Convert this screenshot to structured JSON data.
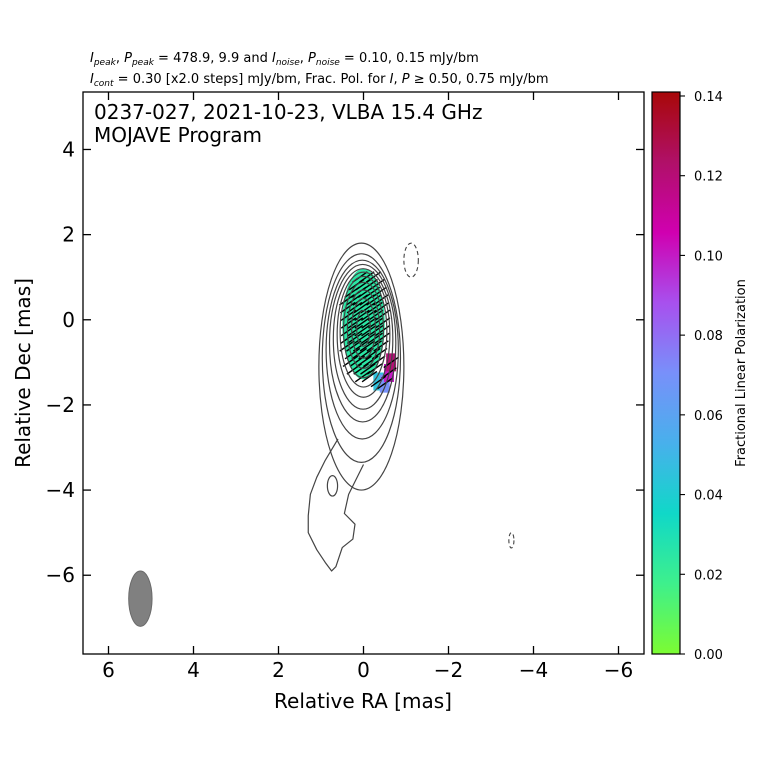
{
  "chart_data": {
    "type": "contour",
    "header": {
      "line1": {
        "sym1": "I",
        "sub1": "peak",
        "sym2": "P",
        "sub2": "peak",
        "mid": " = 478.9, 9.9 and ",
        "sym3": "I",
        "sub3": "noise",
        "sym4": "P",
        "sub4": "noise",
        "tail": " = 0.10, 0.15 mJy/bm"
      },
      "line2": {
        "sym1": "I",
        "sub1": "cont",
        "mid": " = 0.30 [x2.0 steps] mJy/bm, Frac. Pol. for ",
        "sym2": "I",
        "sym3": "P",
        "tail": " 0.50, 0.75 mJy/bm"
      }
    },
    "title_line1": "0237-027, 2021-10-23, VLBA 15.4 GHz",
    "title_line2": "MOJAVE Program",
    "xlabel": "Relative RA [mas]",
    "ylabel": "Relative Dec [mas]",
    "xlim": [
      6.6,
      -6.6
    ],
    "ylim": [
      -7.85,
      5.35
    ],
    "xticks": [
      6,
      4,
      2,
      0,
      -2,
      -4,
      -6
    ],
    "yticks": [
      4,
      2,
      0,
      -2,
      -4,
      -6
    ],
    "colorbar": {
      "label": "Fractional Linear Polarization",
      "range": [
        0,
        0.141
      ],
      "ticks": [
        "0.00",
        "0.02",
        "0.04",
        "0.06",
        "0.08",
        "0.10",
        "0.12",
        "0.14"
      ],
      "colors": [
        "#7cfc32",
        "#3ef08c",
        "#10d8c8",
        "#48b0ec",
        "#7890fa",
        "#a850ee",
        "#d000b0",
        "#b01068",
        "#a80808"
      ]
    },
    "core": {
      "x": 0.0,
      "y": -0.2,
      "peak_mJy_per_beam": 478.9
    },
    "contours": [
      {
        "level": 0.3,
        "cx": 0.05,
        "cy": -1.1,
        "rx": 1.0,
        "ry": 2.9
      },
      {
        "level": 0.6,
        "cx": 0.05,
        "cy": -0.9,
        "rx": 0.92,
        "ry": 2.45
      },
      {
        "level": 1.2,
        "cx": 0.03,
        "cy": -0.7,
        "rx": 0.85,
        "ry": 2.1
      },
      {
        "level": 2.4,
        "cx": 0.02,
        "cy": -0.55,
        "rx": 0.78,
        "ry": 1.85
      },
      {
        "level": 4.8,
        "cx": 0.01,
        "cy": -0.45,
        "rx": 0.7,
        "ry": 1.65
      },
      {
        "level": 9.6,
        "cx": 0.0,
        "cy": -0.35,
        "rx": 0.62,
        "ry": 1.47
      },
      {
        "level": 19.2,
        "cx": 0.0,
        "cy": -0.28,
        "rx": 0.55,
        "ry": 1.3
      },
      {
        "level": 38.4,
        "cx": 0.0,
        "cy": -0.24,
        "rx": 0.47,
        "ry": 1.12
      },
      {
        "level": 76.8,
        "cx": 0.0,
        "cy": -0.22,
        "rx": 0.38,
        "ry": 0.92
      },
      {
        "level": 153.6,
        "cx": 0.0,
        "cy": -0.2,
        "rx": 0.28,
        "ry": 0.7
      },
      {
        "level": 307.2,
        "cx": 0.0,
        "cy": -0.2,
        "rx": 0.16,
        "ry": 0.42
      }
    ],
    "jet_outline": [
      [
        0.6,
        -2.8
      ],
      [
        0.9,
        -3.3
      ],
      [
        1.1,
        -3.7
      ],
      [
        1.25,
        -4.1
      ],
      [
        1.3,
        -4.6
      ],
      [
        1.3,
        -5.0
      ],
      [
        1.1,
        -5.4
      ],
      [
        0.9,
        -5.7
      ],
      [
        0.75,
        -5.9
      ],
      [
        0.65,
        -5.8
      ],
      [
        0.5,
        -5.35
      ],
      [
        0.25,
        -5.15
      ],
      [
        0.2,
        -4.8
      ],
      [
        0.45,
        -4.55
      ],
      [
        0.35,
        -4.1
      ],
      [
        0.0,
        -3.4
      ]
    ],
    "jet_island": {
      "cx": 0.73,
      "cy": -3.9,
      "rx": 0.12,
      "ry": 0.24
    },
    "negative_contours": [
      {
        "cx": -1.12,
        "cy": 1.4,
        "rx": 0.17,
        "ry": 0.4
      },
      {
        "cx": -3.48,
        "cy": -5.18,
        "rx": 0.06,
        "ry": 0.18
      }
    ],
    "polarization_region": {
      "cx": 0.0,
      "cy": -0.1,
      "rx": 0.5,
      "ry": 1.3,
      "frac_pol": 0.025
    },
    "polarization_edge": [
      {
        "x": -0.35,
        "y": -1.45,
        "frac_pol": 0.045
      },
      {
        "x": -0.5,
        "y": -1.5,
        "frac_pol": 0.07
      },
      {
        "x": -0.6,
        "y": -1.25,
        "frac_pol": 0.1
      },
      {
        "x": -0.65,
        "y": -1.0,
        "frac_pol": 0.12
      }
    ],
    "evpa_angle_deg_from_north": 55,
    "beam": {
      "x": 5.25,
      "y": -6.55,
      "major_mas": 1.3,
      "minor_mas": 0.55,
      "pa_deg": 0
    }
  }
}
